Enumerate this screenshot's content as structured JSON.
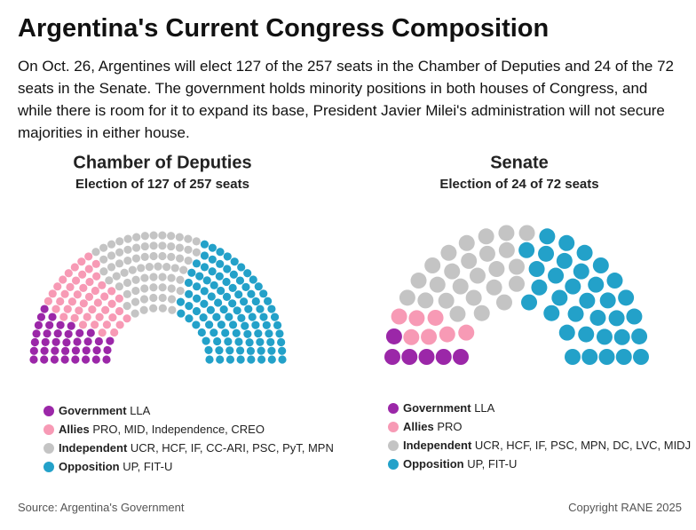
{
  "title": "Argentina's Current Congress Composition",
  "description": "On Oct. 26, Argentines will elect 127 of the 257 seats in the Chamber of Deputies and 24 of the 72 seats in the Senate. The government holds minority positions in both houses of Congress, and while there is room for it to expand its base, President Javier Milei's administration will not secure majorities in either house.",
  "source": "Source: Argentina's Government",
  "copyright": "Copyright RANE 2025",
  "chart_data": [
    {
      "type": "parliament",
      "title": "Chamber of Deputies",
      "subtitle": "Election of 127 of 257 seats",
      "series": [
        {
          "name": "Government",
          "parties": "LLA",
          "color": "#9b27a8",
          "values": 37
        },
        {
          "name": "Allies",
          "parties": "PRO, MID, Independence, CREO",
          "color": "#f79ab5",
          "values": 47
        },
        {
          "name": "Independent",
          "parties": "UCR, HCF, IF, CC-ARI, PSC, PyT, MPN",
          "color": "#c4c4c4",
          "values": 72
        },
        {
          "name": "Opposition",
          "parties": "UP, FIT-U",
          "color": "#23a1c9",
          "values": 101
        }
      ]
    },
    {
      "type": "parliament",
      "title": "Senate",
      "subtitle": "Election of 24 of 72 seats",
      "series": [
        {
          "name": "Government",
          "parties": "LLA",
          "color": "#9b27a8",
          "values": 6
        },
        {
          "name": "Allies",
          "parties": "PRO",
          "color": "#f79ab5",
          "values": 7
        },
        {
          "name": "Independent",
          "parties": "UCR, HCF, IF, PSC, MPN, DC, LVC, MIDJ",
          "color": "#c4c4c4",
          "values": 25
        },
        {
          "name": "Opposition",
          "parties": "UP, FIT-U",
          "color": "#23a1c9",
          "values": 34
        }
      ]
    }
  ]
}
